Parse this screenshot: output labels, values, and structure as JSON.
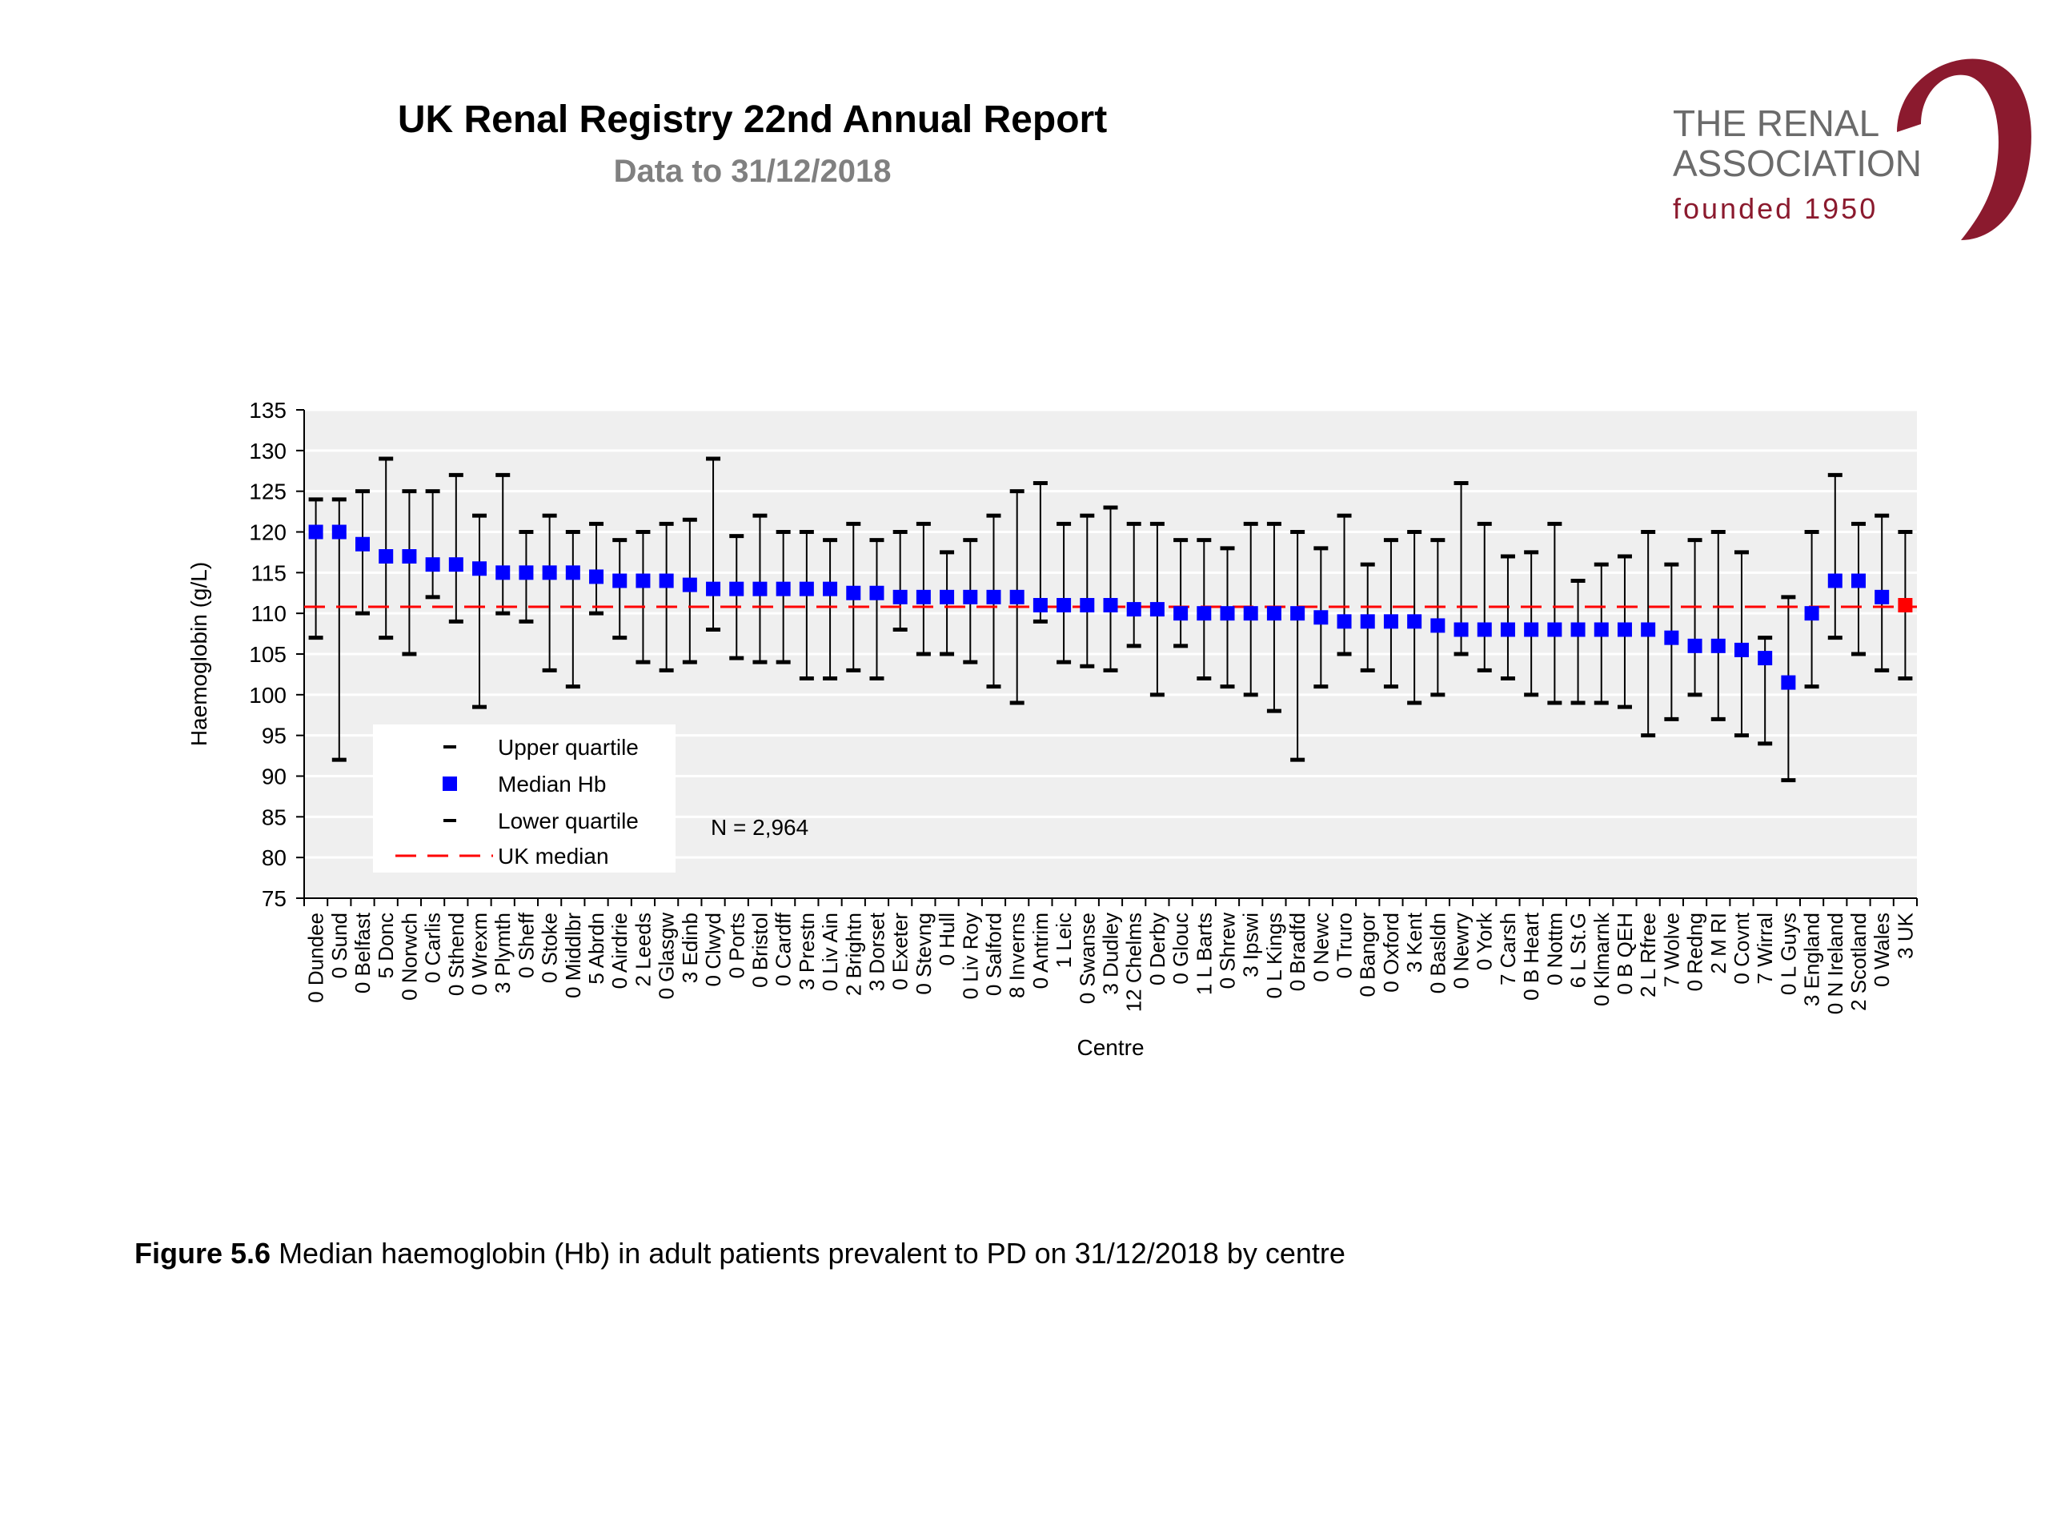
{
  "header": {
    "title": "UK Renal Registry 22nd Annual Report",
    "subtitle": "Data to 31/12/2018"
  },
  "logo": {
    "line1": "THE RENAL",
    "line2": "ASSOCIATION",
    "line3": "founded 1950",
    "color_text": "#6b6b6b",
    "color_accent": "#8b1a2e"
  },
  "caption": {
    "label": "Figure 5.6",
    "text": " Median haemoglobin (Hb) in adult patients prevalent to PD on 31/12/2018 by centre"
  },
  "chart_data": {
    "type": "scatter",
    "xlabel": "Centre",
    "ylabel": "Haemoglobin (g/L)",
    "ylim": [
      75,
      135
    ],
    "yticks": [
      75,
      80,
      85,
      90,
      95,
      100,
      105,
      110,
      115,
      120,
      125,
      130,
      135
    ],
    "grid": true,
    "uk_median": 110.8,
    "annotation": "N = 2,964",
    "legend": {
      "placement": "bottom-left",
      "entries": [
        "Upper quartile",
        "Median Hb",
        "Lower quartile",
        "UK median"
      ]
    },
    "colors": {
      "median": "#0000ff",
      "uk_point": "#ff0000",
      "uk_median_line": "#ff0000",
      "whisker": "#000000",
      "plot_bg": "#efefef"
    },
    "categories": [
      "0 Dundee",
      "0 Sund",
      "0 Belfast",
      "5 Donc",
      "0 Norwch",
      "0 Carlis",
      "0 Sthend",
      "0 Wrexm",
      "3 Plymth",
      "0 Sheff",
      "0 Stoke",
      "0 Middlbr",
      "5 Abrdn",
      "0 Airdrie",
      "2 Leeds",
      "0 Glasgw",
      "3 Edinb",
      "0 Clwyd",
      "0 Ports",
      "0 Bristol",
      "0 Cardff",
      "3 Prestn",
      "0 Liv Ain",
      "2 Brightn",
      "3 Dorset",
      "0 Exeter",
      "0 Stevng",
      "0 Hull",
      "0 Liv Roy",
      "0 Salford",
      "8 Inverns",
      "0 Antrim",
      "1 Leic",
      "0 Swanse",
      "3 Dudley",
      "12 Chelms",
      "0 Derby",
      "0 Glouc",
      "1 L Barts",
      "0 Shrew",
      "3 Ipswi",
      "0 L Kings",
      "0 Bradfd",
      "0 Newc",
      "0 Truro",
      "0 Bangor",
      "0 Oxford",
      "3 Kent",
      "0 Basldn",
      "0 Newry",
      "0 York",
      "7 Carsh",
      "0 B Heart",
      "0 Nottm",
      "6 L St.G",
      "0 Klmarnk",
      "0 B QEH",
      "2 L Rfree",
      "7 Wolve",
      "0 Redng",
      "2 M RI",
      "0 Covnt",
      "7 Wirral",
      "0 L Guys",
      "3 England",
      "0 N Ireland",
      "2 Scotland",
      "0 Wales",
      "3 UK"
    ],
    "series": [
      {
        "name": "Median Hb",
        "values": [
          120,
          120,
          118.5,
          117,
          117,
          116,
          116,
          115.5,
          115,
          115,
          115,
          115,
          114.5,
          114,
          114,
          114,
          113.5,
          113,
          113,
          113,
          113,
          113,
          113,
          112.5,
          112.5,
          112,
          112,
          112,
          112,
          112,
          112,
          111,
          111,
          111,
          111,
          110.5,
          110.5,
          110,
          110,
          110,
          110,
          110,
          110,
          109.5,
          109,
          109,
          109,
          109,
          108.5,
          108,
          108,
          108,
          108,
          108,
          108,
          108,
          108,
          108,
          107,
          106,
          106,
          105.5,
          104.5,
          101.5,
          110,
          114,
          114,
          112,
          111
        ]
      },
      {
        "name": "Upper quartile",
        "values": [
          124,
          124,
          125,
          129,
          125,
          125,
          127,
          122,
          127,
          120,
          122,
          120,
          121,
          119,
          120,
          121,
          121.5,
          129,
          119.5,
          122,
          120,
          120,
          119,
          121,
          119,
          120,
          121,
          117.5,
          119,
          122,
          125,
          126,
          121,
          122,
          123,
          121,
          121,
          119,
          119,
          118,
          121,
          121,
          120,
          118,
          122,
          116,
          119,
          120,
          119,
          126,
          121,
          117,
          117.5,
          121,
          114,
          116,
          117,
          120,
          116,
          119,
          120,
          117.5,
          107,
          112,
          120,
          127,
          121,
          122,
          120
        ]
      },
      {
        "name": "Lower quartile",
        "values": [
          107,
          92,
          110,
          107,
          105,
          112,
          109,
          98.5,
          110,
          109,
          103,
          101,
          110,
          107,
          104,
          103,
          104,
          108,
          104.5,
          104,
          104,
          102,
          102,
          103,
          102,
          108,
          105,
          105,
          104,
          101,
          99,
          109,
          104,
          103.5,
          103,
          106,
          100,
          106,
          102,
          101,
          100,
          98,
          92,
          101,
          105,
          103,
          101,
          99,
          100,
          105,
          103,
          102,
          100,
          99,
          99,
          99,
          98.5,
          95,
          97,
          100,
          97,
          95,
          94,
          89.5,
          101,
          107,
          105,
          103,
          102
        ]
      }
    ]
  }
}
